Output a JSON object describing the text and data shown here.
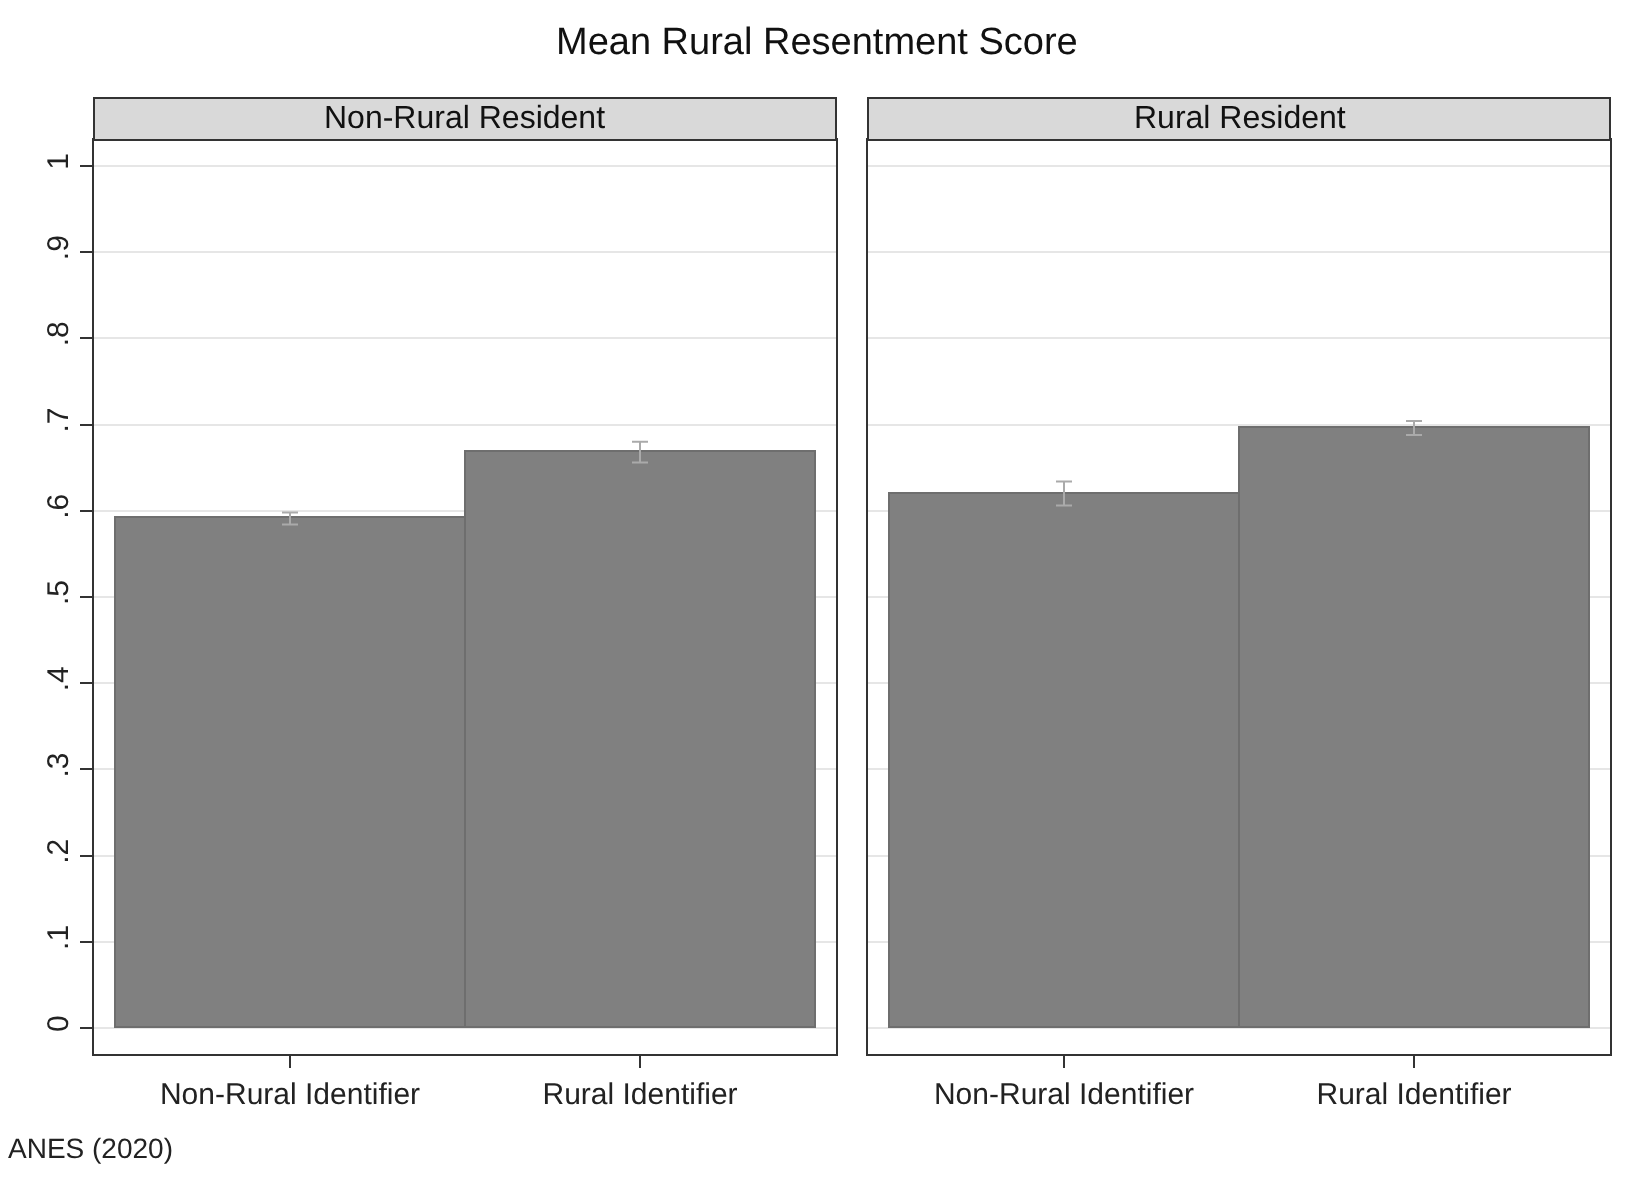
{
  "chart_data": [
    {
      "type": "bar",
      "title": "Mean Rural Resentment Score",
      "subtitle": "Non-Rural Resident",
      "categories": [
        "Non-Rural Identifier",
        "Rural Identifier"
      ],
      "series": [
        {
          "color": "#808080",
          "values": [
            0.591,
            0.668
          ],
          "errors": [
            0.007,
            0.012
          ]
        }
      ],
      "ylim": [
        -0.03,
        1.03
      ],
      "yticks": [
        0,
        {
          "value": 0.1,
          "label": ".1"
        },
        {
          "value": 0.2,
          "label": ".2"
        },
        {
          "value": 0.3,
          "label": ".3"
        },
        {
          "value": 0.4,
          "label": ".4"
        },
        {
          "value": 0.5,
          "label": ".5"
        },
        {
          "value": 0.6,
          "label": ".6"
        },
        {
          "value": 0.7,
          "label": ".7"
        },
        {
          "value": 0.8,
          "label": ".8"
        },
        {
          "value": 0.9,
          "label": ".9"
        },
        1
      ],
      "grid": "y",
      "annotations": [
        "ANES (2020)"
      ]
    },
    {
      "type": "bar",
      "subtitle": "Rural Resident",
      "categories": [
        "Non-Rural Identifier",
        "Rural Identifier"
      ],
      "series": [
        {
          "color": "#808080",
          "values": [
            0.62,
            0.696
          ],
          "errors": [
            0.014,
            0.008
          ]
        }
      ],
      "ylim": [
        -0.03,
        1.03
      ],
      "yticks": [
        0,
        0.1,
        0.2,
        0.3,
        0.4,
        0.5,
        0.6,
        0.7,
        0.8,
        0.9,
        1
      ],
      "grid": "y",
      "tick_labels": "x"
    }
  ]
}
